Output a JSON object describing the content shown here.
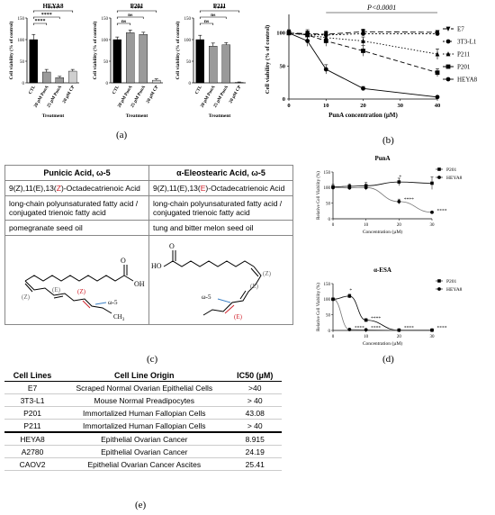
{
  "panel_labels": {
    "a": "(a)",
    "b": "(b)",
    "c": "(c)",
    "d": "(d)",
    "e": "(e)"
  },
  "chart_data": [
    {
      "id": "a-heya8",
      "type": "bar",
      "title": "HEYA8",
      "ylabel": "Cell viability (% of control)",
      "xlabel": "Treatment",
      "ylim": [
        0,
        150
      ],
      "yticks": [
        "0",
        "50",
        "100",
        "150"
      ],
      "categories": [
        "CTL",
        "20 µM PunA",
        "25 µM PunA",
        "20 µM CP"
      ],
      "values": [
        100,
        25,
        12,
        27
      ],
      "errors": [
        12,
        6,
        3,
        4
      ],
      "fills": [
        "#000000",
        "#9a9a9a",
        "#9a9a9a",
        "#cfcfcf"
      ],
      "brackets": [
        {
          "from": 0,
          "to": 3,
          "label": "****"
        },
        {
          "from": 0,
          "to": 2,
          "label": "****"
        },
        {
          "from": 0,
          "to": 1,
          "label": "****"
        }
      ]
    },
    {
      "id": "a-p201",
      "type": "bar",
      "title": "P201",
      "ylabel": "Cell viability (% of control)",
      "xlabel": "Treatment",
      "ylim": [
        0,
        150
      ],
      "yticks": [
        "0",
        "50",
        "100",
        "150"
      ],
      "categories": [
        "CTL",
        "20 µM PunA",
        "25 µM PunA",
        "20 µM CP"
      ],
      "values": [
        100,
        116,
        112,
        6
      ],
      "errors": [
        6,
        6,
        5,
        3
      ],
      "fills": [
        "#000000",
        "#9a9a9a",
        "#9a9a9a",
        "#cfcfcf"
      ],
      "brackets": [
        {
          "from": 0,
          "to": 3,
          "label": "****"
        },
        {
          "from": 0,
          "to": 2,
          "label": "ns"
        },
        {
          "from": 0,
          "to": 1,
          "label": "ns"
        }
      ]
    },
    {
      "id": "a-p211",
      "type": "bar",
      "title": "P211",
      "ylabel": "Cell viability (% of control)",
      "xlabel": "Treatment",
      "ylim": [
        0,
        150
      ],
      "yticks": [
        "0",
        "50",
        "100",
        "150"
      ],
      "categories": [
        "CTL",
        "20 µM PunA",
        "25 µM PunA",
        "20 µM CP"
      ],
      "values": [
        100,
        85,
        88,
        1
      ],
      "errors": [
        10,
        7,
        5,
        1
      ],
      "fills": [
        "#000000",
        "#9a9a9a",
        "#9a9a9a",
        "#cfcfcf"
      ],
      "brackets": [
        {
          "from": 0,
          "to": 3,
          "label": "****"
        },
        {
          "from": 0,
          "to": 2,
          "label": "ns"
        },
        {
          "from": 0,
          "to": 1,
          "label": "ns"
        }
      ]
    },
    {
      "id": "b",
      "type": "line",
      "xlabel": "PunA concentration (µM)",
      "ylabel": "Cell viability (% of control)",
      "xlim": [
        0,
        40
      ],
      "ylim": [
        0,
        120
      ],
      "xticks": [
        "0",
        "10",
        "20",
        "30",
        "40"
      ],
      "yticks": [
        "0",
        "50",
        "100"
      ],
      "annotation": "P<0.0001",
      "legend_position": "right",
      "series": [
        {
          "name": "E7",
          "marker": "tri-down",
          "dash": "6,3",
          "x": [
            0,
            5,
            10,
            20,
            40
          ],
          "y": [
            100,
            99,
            98,
            102,
            101
          ],
          "err": [
            4,
            4,
            4,
            4,
            3
          ]
        },
        {
          "name": "3T3-L1",
          "marker": "circle",
          "dash": "2,2",
          "x": [
            0,
            5,
            10,
            20,
            40
          ],
          "y": [
            100,
            98,
            97,
            99,
            99
          ],
          "err": [
            3,
            3,
            6,
            3,
            3
          ]
        },
        {
          "name": "P211",
          "marker": "tri-up",
          "dash": "1.5,2",
          "x": [
            0,
            5,
            10,
            20,
            40
          ],
          "y": [
            100,
            97,
            93,
            88,
            68
          ],
          "err": [
            5,
            8,
            8,
            6,
            8
          ]
        },
        {
          "name": "P201",
          "marker": "square",
          "dash": "5,3",
          "x": [
            0,
            5,
            10,
            20,
            40
          ],
          "y": [
            100,
            97,
            88,
            73,
            40
          ],
          "err": [
            4,
            6,
            8,
            8,
            6
          ]
        },
        {
          "name": "HEYA8",
          "marker": "circle",
          "dash": "",
          "x": [
            0,
            5,
            10,
            20,
            40
          ],
          "y": [
            100,
            88,
            45,
            16,
            3
          ],
          "err": [
            4,
            8,
            7,
            3,
            2
          ]
        }
      ]
    },
    {
      "id": "d-puna",
      "type": "line",
      "title": "PunA",
      "xlabel": "Concentration (µM)",
      "ylabel": "Relative Cell Viability (%)",
      "xlim": [
        0,
        30
      ],
      "ylim": [
        0,
        150
      ],
      "xticks": [
        "0",
        "10",
        "20",
        "30"
      ],
      "yticks": [
        "0",
        "50",
        "100",
        "150"
      ],
      "legend_position": "top-right",
      "series": [
        {
          "name": "P201",
          "marker": "square",
          "x": [
            0,
            5,
            10,
            20,
            30
          ],
          "y": [
            102,
            104,
            106,
            118,
            114
          ],
          "err": [
            8,
            8,
            10,
            12,
            20
          ]
        },
        {
          "name": "HEYA8",
          "marker": "circle",
          "x": [
            0,
            5,
            10,
            20,
            30
          ],
          "y": [
            100,
            99,
            100,
            55,
            21
          ],
          "err": [
            6,
            6,
            8,
            8,
            3
          ]
        }
      ],
      "annotations": [
        {
          "x": 20,
          "y": 130,
          "text": "*"
        },
        {
          "x": 21.5,
          "y": 58,
          "text": "****"
        },
        {
          "x": 31.5,
          "y": 22,
          "text": "****"
        }
      ]
    },
    {
      "id": "d-aesa",
      "type": "line",
      "title": "α-ESA",
      "xlabel": "Concentration (µM)",
      "ylabel": "Relative Cell Viability (%)",
      "xlim": [
        0,
        30
      ],
      "ylim": [
        0,
        150
      ],
      "xticks": [
        "0",
        "10",
        "20",
        "30"
      ],
      "yticks": [
        "0",
        "50",
        "100",
        "150"
      ],
      "legend_position": "top-right",
      "series": [
        {
          "name": "P201",
          "marker": "square",
          "x": [
            0,
            5,
            10,
            20,
            30
          ],
          "y": [
            100,
            110,
            33,
            1,
            1
          ],
          "err": [
            4,
            6,
            5,
            1,
            1
          ]
        },
        {
          "name": "HEYA8",
          "marker": "circle",
          "x": [
            0,
            5,
            10,
            20,
            30
          ],
          "y": [
            100,
            3,
            2,
            1,
            1
          ],
          "err": [
            3,
            1,
            1,
            1,
            1
          ]
        }
      ],
      "annotations": [
        {
          "x": 5,
          "y": 124,
          "text": "*"
        },
        {
          "x": 11.5,
          "y": 35,
          "text": "****"
        },
        {
          "x": 6.5,
          "y": 5,
          "text": "****"
        },
        {
          "x": 11.5,
          "y": 5,
          "text": "****"
        },
        {
          "x": 21.5,
          "y": 5,
          "text": "****"
        },
        {
          "x": 31.5,
          "y": 5,
          "text": "****"
        }
      ]
    }
  ],
  "fatty_acids": {
    "headers": [
      "Punicic Acid, ω-5",
      "α-Eleostearic Acid, ω-5"
    ],
    "names": [
      {
        "pre": "9(Z),11(E),13(",
        "iso": "Z",
        "post": ")-Octadecatrienoic Acid"
      },
      {
        "pre": "9(Z),11(E),13(",
        "iso": "E",
        "post": ")-Octadecatrienoic Acid"
      }
    ],
    "types": [
      "long-chain polyunsaturated fatty acid / conjugated trienoic fatty acid",
      "long-chain polyunsaturated fatty acid / conjugated trienoic fatty acid"
    ],
    "sources": [
      "pomegranate seed oil",
      "tung and bitter melon seed oil"
    ],
    "structure_labels": {
      "oh": "OH",
      "o": "O",
      "ho": "HO",
      "z": "(Z)",
      "e": "(E)",
      "omega": "ω-5",
      "ch3": "CH",
      "sub3": "3",
      "red_z": "(Z)",
      "red_e": "(E)"
    },
    "accent": "#d0202a",
    "omega_arrow_color": "#3b7fc4"
  },
  "ic50_table": {
    "headers": [
      "Cell Lines",
      "Cell Line Origin",
      "IC50 (µM)"
    ],
    "rows": [
      [
        "E7",
        "Scraped Normal Ovarian Epithelial Cells",
        ">40"
      ],
      [
        "3T3-L1",
        "Mouse Normal Preadipocytes",
        "> 40"
      ],
      [
        "P201",
        "Immortalized Human Fallopian Cells",
        "43.08"
      ],
      [
        "P211",
        "Immortalized Human Fallopian Cells",
        "> 40"
      ],
      [
        "HEYA8",
        "Epithelial Ovarian Cancer",
        "8.915"
      ],
      [
        "A2780",
        "Epithelial Ovarian Cancer",
        "24.19"
      ],
      [
        "CAOV2",
        "Epithelial Ovarian Cancer Ascites",
        "25.41"
      ]
    ]
  }
}
